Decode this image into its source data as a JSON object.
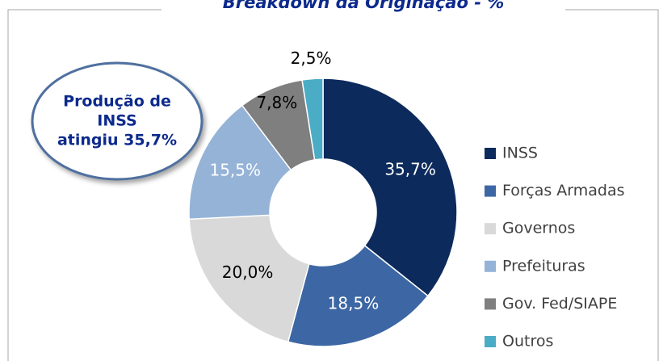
{
  "chart_data": {
    "type": "donut",
    "title": "Breakdown da Originação - %",
    "annotation": [
      "Produção de",
      "INSS",
      "atingiu 35,7%"
    ],
    "categories": [
      "INSS",
      "Forças Armadas",
      "Governos",
      "Prefeituras",
      "Gov. Fed/SIAPE",
      "Outros"
    ],
    "values": [
      35.7,
      18.5,
      20.0,
      15.5,
      7.8,
      2.5
    ],
    "value_labels": [
      "35,7%",
      "18,5%",
      "20,0%",
      "15,5%",
      "7,8%",
      "2,5%"
    ],
    "colors": [
      "#0c2a5c",
      "#3d67a4",
      "#d9d9d9",
      "#95b3d7",
      "#7f7f7f",
      "#4bacc6"
    ],
    "label_colors": [
      "#ffffff",
      "#ffffff",
      "#000000",
      "#ffffff",
      "#000000",
      "#000000"
    ],
    "legend": "right"
  }
}
